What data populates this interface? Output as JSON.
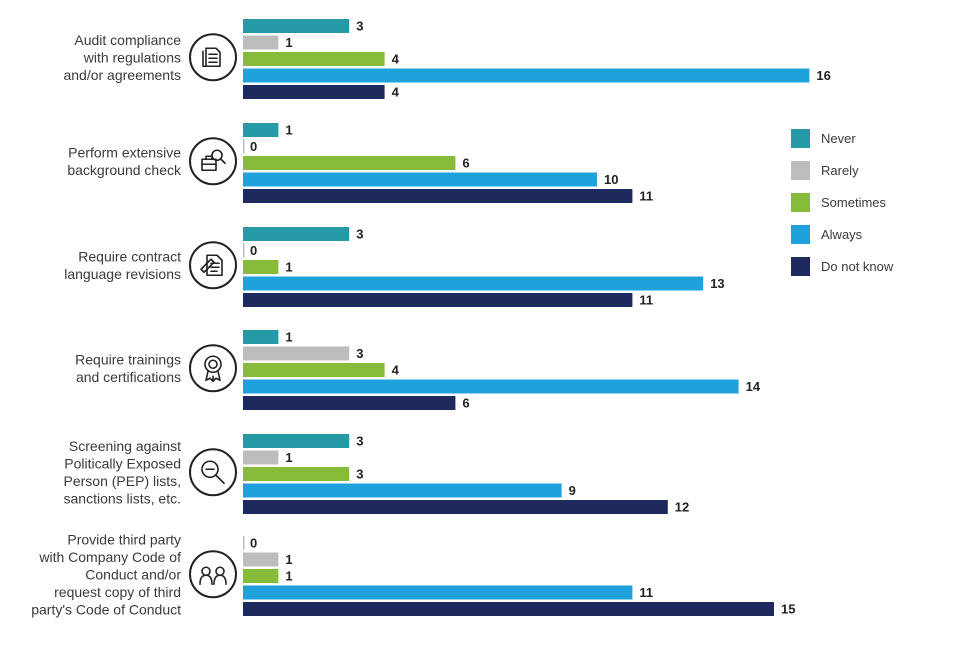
{
  "chart_data": {
    "type": "bar",
    "orientation": "horizontal",
    "categories": [
      "Audit compliance with regulations and/or agreements",
      "Perform extensive background check",
      "Require contract language revisions",
      "Require trainings and certifications",
      "Screening against Politically Exposed Person (PEP) lists, sanctions lists, etc.",
      "Provide third party with Company Code of Conduct and/or request copy of third party's Code of Conduct"
    ],
    "category_label_lines": [
      [
        "Audit compliance",
        "with regulations",
        "and/or agreements"
      ],
      [
        "Perform extensive",
        "background check"
      ],
      [
        "Require contract",
        "language revisions"
      ],
      [
        "Require trainings",
        "and certifications"
      ],
      [
        "Screening against",
        "Politically Exposed",
        "Person (PEP) lists,",
        "sanctions lists, etc."
      ],
      [
        "Provide third party",
        "with Company Code of",
        "Conduct and/or",
        "request copy of third",
        "party's Code of Conduct"
      ]
    ],
    "icons": [
      "documents-icon",
      "briefcase-search-icon",
      "contract-pen-icon",
      "certificate-badge-icon",
      "magnifier-minus-icon",
      "people-icon"
    ],
    "series": [
      {
        "name": "Never",
        "color": "#2599A6",
        "values": [
          3,
          1,
          3,
          1,
          3,
          0
        ]
      },
      {
        "name": "Rarely",
        "color": "#BDBDBD",
        "values": [
          1,
          0,
          0,
          3,
          1,
          1
        ]
      },
      {
        "name": "Sometimes",
        "color": "#86BC3A",
        "values": [
          4,
          6,
          1,
          4,
          3,
          1
        ]
      },
      {
        "name": "Always",
        "color": "#1FA1DC",
        "values": [
          16,
          10,
          13,
          14,
          9,
          11
        ]
      },
      {
        "name": "Do not know",
        "color": "#1E2A5E",
        "values": [
          4,
          11,
          11,
          6,
          12,
          15
        ]
      }
    ],
    "xlim": [
      0,
      16
    ],
    "legend_position": "right",
    "grid": false,
    "title": "",
    "xlabel": "",
    "ylabel": ""
  }
}
